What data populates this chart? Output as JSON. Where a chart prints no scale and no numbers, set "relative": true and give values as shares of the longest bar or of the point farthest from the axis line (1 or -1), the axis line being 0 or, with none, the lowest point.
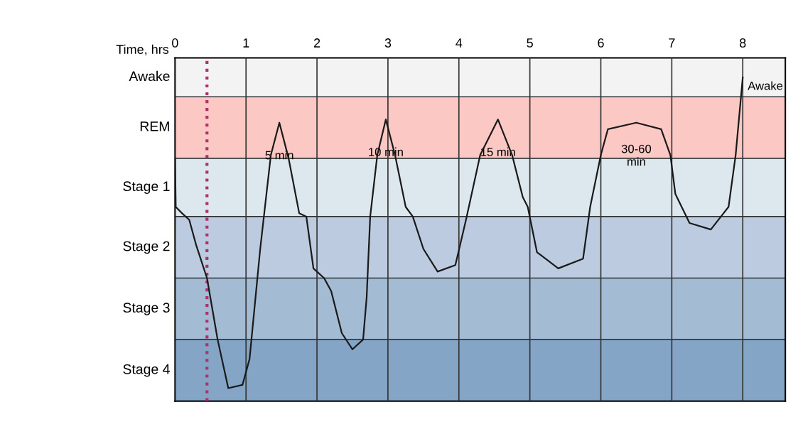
{
  "chart_data": {
    "type": "line",
    "xlabel": "Time, hrs",
    "relative": true,
    "xlim": [
      0,
      8.6
    ],
    "xticks": [
      0,
      1,
      2,
      3,
      4,
      5,
      6,
      7,
      8
    ],
    "grid": "x",
    "marker": "none",
    "line_style": "solid",
    "bands": [
      {
        "axis": "y",
        "from": 0,
        "to": 0.19,
        "color": "#84a5c6",
        "label": "Stage 4"
      },
      {
        "axis": "y",
        "from": 0.19,
        "to": 0.38,
        "color": "#a3bbd3",
        "label": "Stage 3"
      },
      {
        "axis": "y",
        "from": 0.38,
        "to": 0.57,
        "color": "#bccbdf",
        "label": "Stage 2"
      },
      {
        "axis": "y",
        "from": 0.57,
        "to": 0.75,
        "color": "#dde8ee",
        "label": "Stage 1"
      },
      {
        "axis": "y",
        "from": 0.75,
        "to": 0.94,
        "color": "#fcc8c4",
        "label": "REM"
      },
      {
        "axis": "y",
        "from": 0.94,
        "to": 1.06,
        "color": "#f3f3f3",
        "label": "Awake"
      }
    ],
    "ref_lines": [
      {
        "axis": "x",
        "value": 0.45,
        "color": "#b0306a",
        "line_style": "dotted"
      }
    ],
    "series": [
      {
        "color": "#1a1a1a",
        "x": [
          0,
          0.01,
          0.1,
          0.2,
          0.3,
          0.45,
          0.6,
          0.75,
          0.95,
          1.05,
          1.2,
          1.35,
          1.47,
          1.6,
          1.75,
          1.85,
          1.95,
          2.1,
          2.2,
          2.35,
          2.5,
          2.65,
          2.7,
          2.75,
          2.85,
          2.97,
          3.1,
          3.25,
          3.35,
          3.5,
          3.7,
          3.95,
          4.1,
          4.3,
          4.55,
          4.75,
          4.9,
          4.97,
          5.1,
          5.4,
          5.75,
          5.85,
          6.0,
          6.1,
          6.5,
          6.85,
          6.98,
          7.05,
          7.25,
          7.55,
          7.8,
          7.9,
          8.0
        ],
        "values": [
          0.75,
          0.6,
          0.58,
          0.56,
          0.48,
          0.38,
          0.19,
          0.04,
          0.05,
          0.13,
          0.47,
          0.76,
          0.86,
          0.75,
          0.58,
          0.57,
          0.41,
          0.38,
          0.34,
          0.21,
          0.16,
          0.19,
          0.32,
          0.57,
          0.76,
          0.87,
          0.76,
          0.6,
          0.57,
          0.47,
          0.4,
          0.42,
          0.56,
          0.76,
          0.87,
          0.76,
          0.63,
          0.6,
          0.46,
          0.41,
          0.44,
          0.6,
          0.76,
          0.84,
          0.86,
          0.84,
          0.76,
          0.64,
          0.55,
          0.53,
          0.6,
          0.76,
          1.0
        ]
      }
    ],
    "annotations": [
      "5 min",
      "10 min",
      "15 min",
      "30-60\nmin",
      "Awake"
    ]
  }
}
